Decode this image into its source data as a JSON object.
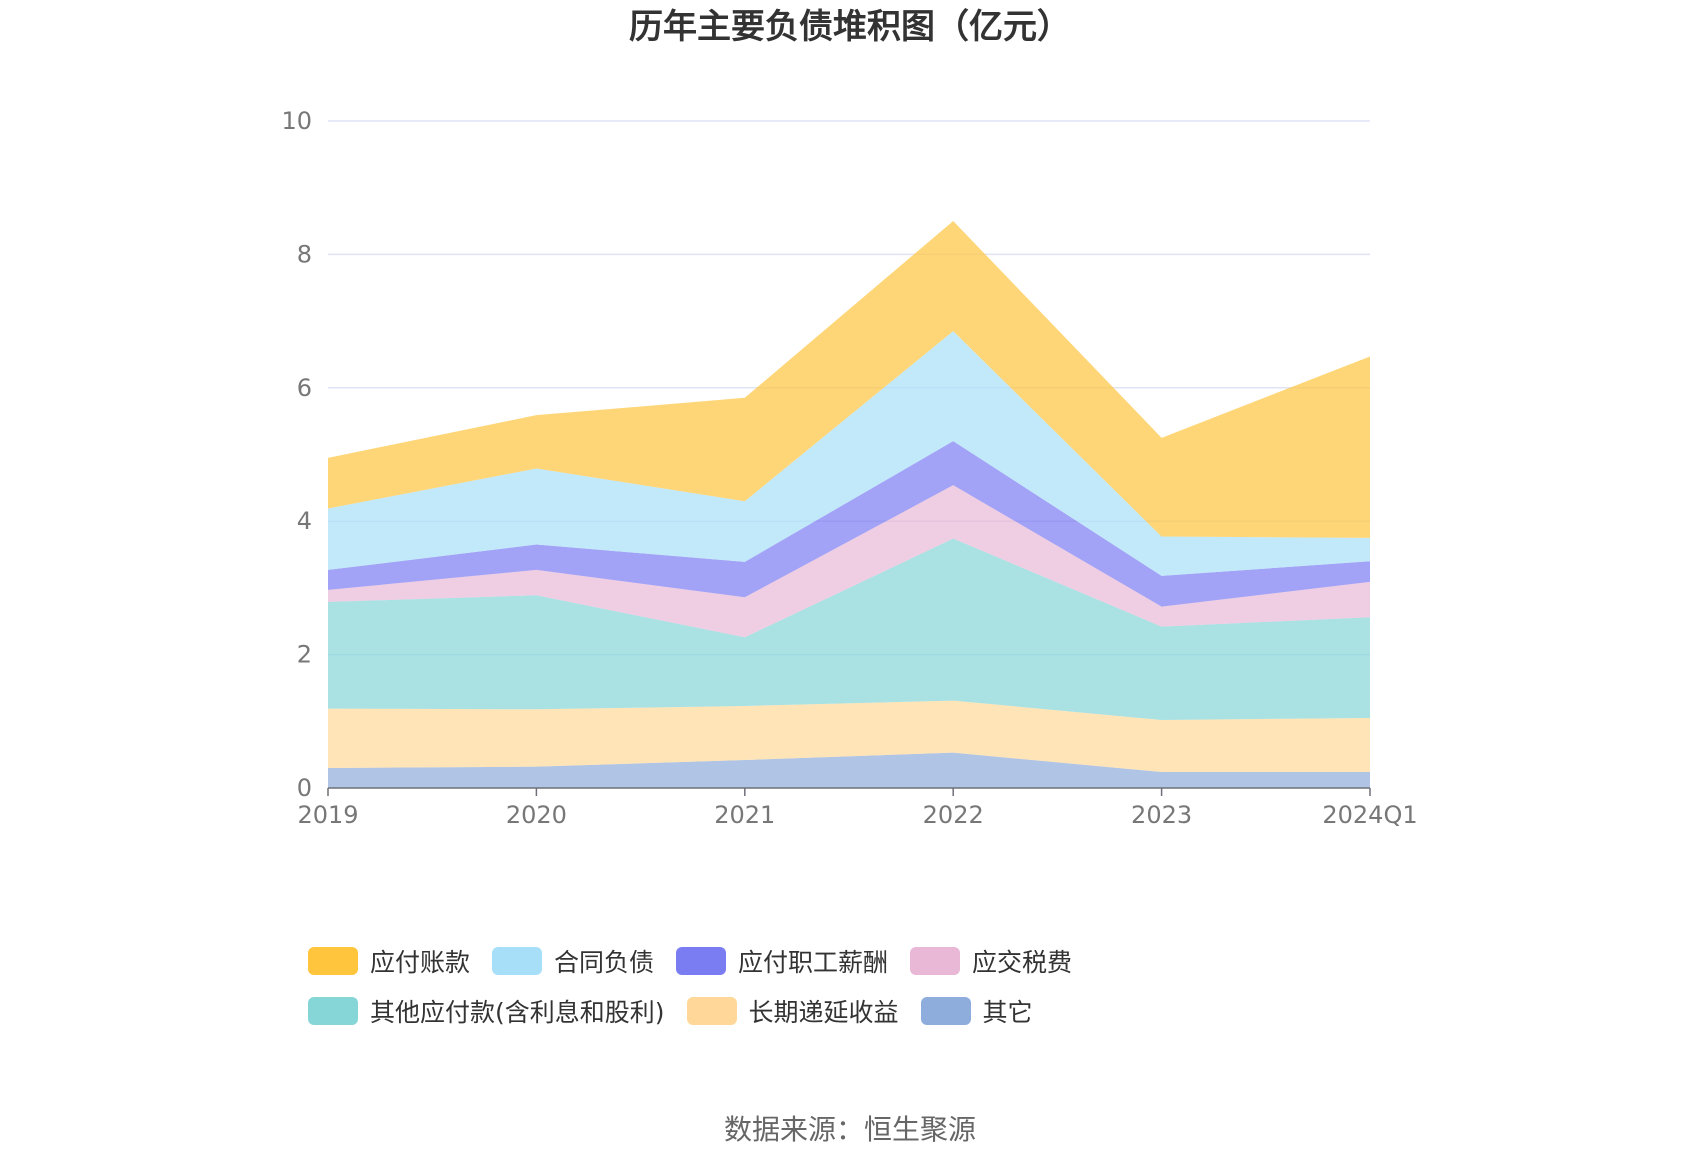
{
  "chart_data": {
    "type": "area",
    "stacked": true,
    "title": "历年主要负债堆积图（亿元）",
    "categories": [
      "2019",
      "2020",
      "2021",
      "2022",
      "2023",
      "2024Q1"
    ],
    "ylim": [
      0,
      10
    ],
    "yticks": [
      "0",
      "2",
      "4",
      "6",
      "8",
      "10"
    ],
    "grid": true,
    "legend_position": "bottom",
    "series": [
      {
        "name": "其它",
        "color": "#8EADDC",
        "values": [
          0.3,
          0.32,
          0.42,
          0.53,
          0.24,
          0.24
        ]
      },
      {
        "name": "长期递延收益",
        "color": "#FFD899",
        "values": [
          0.89,
          0.86,
          0.81,
          0.78,
          0.78,
          0.81
        ]
      },
      {
        "name": "其他应付款(含利息和股利)",
        "color": "#86D6D8",
        "values": [
          1.6,
          1.71,
          1.03,
          2.43,
          1.4,
          1.51
        ]
      },
      {
        "name": "应交税费",
        "color": "#E8B8D6",
        "values": [
          0.18,
          0.38,
          0.6,
          0.8,
          0.3,
          0.53
        ]
      },
      {
        "name": "应付职工薪酬",
        "color": "#7A7CF2",
        "values": [
          0.3,
          0.38,
          0.53,
          0.66,
          0.46,
          0.31
        ]
      },
      {
        "name": "合同负债",
        "color": "#A8DFF8",
        "values": [
          0.92,
          1.14,
          0.91,
          1.65,
          0.59,
          0.35
        ]
      },
      {
        "name": "应付账款",
        "color": "#FFC53D",
        "values": [
          0.76,
          0.8,
          1.55,
          1.65,
          1.48,
          2.72
        ]
      }
    ]
  },
  "legend_order": [
    "应付账款",
    "合同负债",
    "应付职工薪酬",
    "应交税费",
    "其他应付款(含利息和股利)",
    "长期递延收益",
    "其它"
  ],
  "source": "数据来源：恒生聚源"
}
